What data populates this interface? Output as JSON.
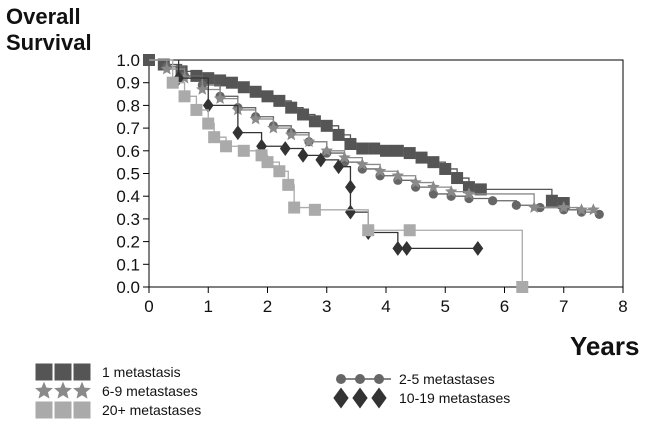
{
  "chart_data": {
    "type": "line",
    "title": "",
    "ylabel_line1": "Overall",
    "ylabel_line2": "Survival",
    "xlabel": "Years",
    "xlim": [
      0,
      8
    ],
    "ylim": [
      0,
      1
    ],
    "xticks": [
      "0",
      "1",
      "2",
      "3",
      "4",
      "5",
      "6",
      "7",
      "8"
    ],
    "yticks": [
      "0.0",
      "0.1",
      "0.2",
      "0.3",
      "0.4",
      "0.5",
      "0.6",
      "0.7",
      "0.8",
      "0.9",
      "1.0"
    ],
    "grid": false,
    "legend_position": "bottom",
    "series": [
      {
        "name": "1 metastasis",
        "marker": "square",
        "color": "#555555",
        "points": [
          [
            0,
            1.0
          ],
          [
            0.25,
            0.98
          ],
          [
            0.55,
            0.95
          ],
          [
            0.8,
            0.93
          ],
          [
            1.0,
            0.92
          ],
          [
            1.2,
            0.91
          ],
          [
            1.4,
            0.9
          ],
          [
            1.6,
            0.88
          ],
          [
            1.8,
            0.86
          ],
          [
            2.0,
            0.84
          ],
          [
            2.2,
            0.82
          ],
          [
            2.4,
            0.79
          ],
          [
            2.6,
            0.76
          ],
          [
            2.8,
            0.73
          ],
          [
            3.0,
            0.71
          ],
          [
            3.2,
            0.67
          ],
          [
            3.4,
            0.63
          ],
          [
            3.6,
            0.61
          ],
          [
            3.8,
            0.61
          ],
          [
            4.0,
            0.6
          ],
          [
            4.2,
            0.6
          ],
          [
            4.4,
            0.59
          ],
          [
            4.6,
            0.57
          ],
          [
            4.8,
            0.55
          ],
          [
            5.0,
            0.52
          ],
          [
            5.2,
            0.48
          ],
          [
            5.4,
            0.44
          ],
          [
            5.6,
            0.43
          ],
          [
            6.8,
            0.38
          ],
          [
            7.0,
            0.37
          ]
        ]
      },
      {
        "name": "2-5 metastases",
        "marker": "circle",
        "color": "#666666",
        "points": [
          [
            0,
            1.0
          ],
          [
            0.3,
            0.97
          ],
          [
            0.6,
            0.93
          ],
          [
            0.9,
            0.89
          ],
          [
            1.2,
            0.84
          ],
          [
            1.5,
            0.79
          ],
          [
            1.8,
            0.75
          ],
          [
            2.1,
            0.71
          ],
          [
            2.4,
            0.68
          ],
          [
            2.7,
            0.64
          ],
          [
            3.0,
            0.59
          ],
          [
            3.3,
            0.55
          ],
          [
            3.6,
            0.52
          ],
          [
            3.9,
            0.49
          ],
          [
            4.2,
            0.47
          ],
          [
            4.5,
            0.44
          ],
          [
            4.8,
            0.41
          ],
          [
            5.1,
            0.4
          ],
          [
            5.4,
            0.39
          ],
          [
            5.8,
            0.38
          ],
          [
            6.2,
            0.36
          ],
          [
            6.6,
            0.35
          ],
          [
            7.0,
            0.34
          ],
          [
            7.3,
            0.33
          ],
          [
            7.6,
            0.32
          ]
        ]
      },
      {
        "name": "6-9 metastases",
        "marker": "star",
        "color": "#8a8a8a",
        "points": [
          [
            0,
            1.0
          ],
          [
            0.3,
            0.96
          ],
          [
            0.6,
            0.92
          ],
          [
            0.9,
            0.87
          ],
          [
            1.2,
            0.83
          ],
          [
            1.5,
            0.78
          ],
          [
            1.8,
            0.74
          ],
          [
            2.1,
            0.7
          ],
          [
            2.4,
            0.67
          ],
          [
            2.7,
            0.64
          ],
          [
            3.0,
            0.6
          ],
          [
            3.3,
            0.57
          ],
          [
            3.6,
            0.54
          ],
          [
            3.9,
            0.51
          ],
          [
            4.2,
            0.49
          ],
          [
            4.5,
            0.46
          ],
          [
            4.8,
            0.44
          ],
          [
            5.1,
            0.42
          ],
          [
            5.4,
            0.41
          ],
          [
            6.5,
            0.35
          ],
          [
            7.0,
            0.35
          ],
          [
            7.3,
            0.34
          ],
          [
            7.5,
            0.34
          ]
        ]
      },
      {
        "name": "10-19 metastases",
        "marker": "diamond",
        "color": "#333333",
        "points": [
          [
            0,
            1.0
          ],
          [
            0.5,
            0.92
          ],
          [
            1.0,
            0.8
          ],
          [
            1.5,
            0.68
          ],
          [
            1.9,
            0.62
          ],
          [
            2.3,
            0.61
          ],
          [
            2.6,
            0.58
          ],
          [
            2.9,
            0.56
          ],
          [
            3.2,
            0.53
          ],
          [
            3.4,
            0.44
          ],
          [
            3.4,
            0.33
          ],
          [
            3.7,
            0.24
          ],
          [
            4.2,
            0.17
          ],
          [
            4.35,
            0.17
          ],
          [
            5.55,
            0.17
          ]
        ]
      },
      {
        "name": "20+ metastases",
        "marker": "square",
        "color": "#aaaaaa",
        "points": [
          [
            0,
            1.0
          ],
          [
            0.4,
            0.9
          ],
          [
            0.6,
            0.84
          ],
          [
            0.8,
            0.78
          ],
          [
            1.0,
            0.72
          ],
          [
            1.1,
            0.66
          ],
          [
            1.3,
            0.62
          ],
          [
            1.6,
            0.6
          ],
          [
            1.9,
            0.58
          ],
          [
            2.0,
            0.55
          ],
          [
            2.2,
            0.51
          ],
          [
            2.35,
            0.45
          ],
          [
            2.45,
            0.35
          ],
          [
            2.8,
            0.34
          ],
          [
            3.7,
            0.25
          ],
          [
            4.4,
            0.25
          ],
          [
            6.3,
            0.0
          ]
        ]
      }
    ]
  }
}
